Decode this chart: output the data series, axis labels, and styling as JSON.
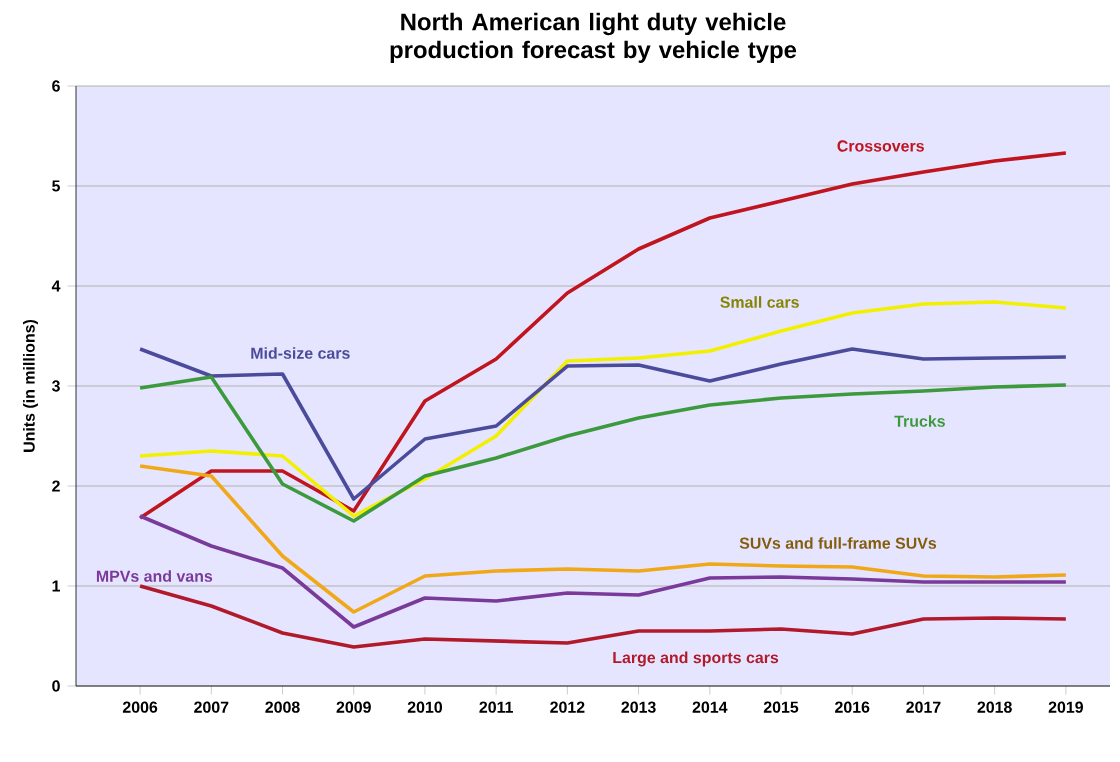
{
  "chart_data": {
    "type": "line",
    "title": "North American light duty vehicle production forecast by vehicle type",
    "ylabel": "Units (in millions)",
    "categories": [
      "2006",
      "2007",
      "2008",
      "2009",
      "2010",
      "2011",
      "2012",
      "2013",
      "2014",
      "2015",
      "2016",
      "2017",
      "2018",
      "2019"
    ],
    "ylim": [
      0,
      6
    ],
    "yticks": [
      0,
      1,
      2,
      3,
      4,
      5,
      6
    ],
    "grid": "y",
    "legend": false,
    "marker": "none",
    "line_style": "solid",
    "series": [
      {
        "name": "Crossovers",
        "color": "#c0141e",
        "values": [
          1.68,
          2.15,
          2.15,
          1.75,
          2.85,
          3.27,
          3.93,
          4.37,
          4.68,
          4.85,
          5.02,
          5.14,
          5.25,
          5.33
        ]
      },
      {
        "name": "Small cars",
        "color": "#f2f000",
        "values": [
          2.3,
          2.35,
          2.3,
          1.7,
          2.07,
          2.5,
          3.25,
          3.28,
          3.35,
          3.55,
          3.73,
          3.82,
          3.84,
          3.78
        ]
      },
      {
        "name": "Mid-size cars",
        "color": "#4b4b9c",
        "values": [
          3.37,
          3.1,
          3.12,
          1.87,
          2.47,
          2.6,
          3.2,
          3.21,
          3.05,
          3.22,
          3.37,
          3.27,
          3.28,
          3.29
        ]
      },
      {
        "name": "Trucks",
        "color": "#3c9a3c",
        "values": [
          2.98,
          3.09,
          2.02,
          1.65,
          2.1,
          2.28,
          2.5,
          2.68,
          2.81,
          2.88,
          2.92,
          2.95,
          2.99,
          3.01
        ]
      },
      {
        "name": "SUVs and full-frame SUVs",
        "color": "#f0a818",
        "values": [
          2.2,
          2.1,
          1.3,
          0.74,
          1.1,
          1.15,
          1.17,
          1.15,
          1.22,
          1.2,
          1.19,
          1.1,
          1.09,
          1.11
        ]
      },
      {
        "name": "MPVs and vans",
        "color": "#7a3a9a",
        "values": [
          1.7,
          1.4,
          1.18,
          0.59,
          0.88,
          0.85,
          0.93,
          0.91,
          1.08,
          1.09,
          1.07,
          1.04,
          1.04,
          1.04
        ]
      },
      {
        "name": "Large and sports cars",
        "color": "#b01a2a",
        "values": [
          1.0,
          0.8,
          0.53,
          0.39,
          0.47,
          0.45,
          0.43,
          0.55,
          0.55,
          0.57,
          0.52,
          0.67,
          0.68,
          0.67
        ]
      }
    ]
  }
}
